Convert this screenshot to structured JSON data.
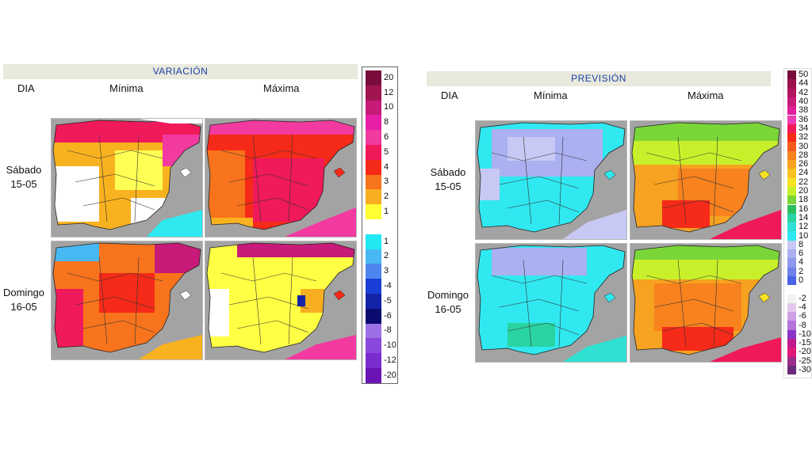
{
  "variacion": {
    "title": "VARIACIÓN",
    "col_day": "DIA",
    "col_min": "Mínima",
    "col_max": "Máxima",
    "rows": [
      {
        "day": "Sábado",
        "date": "15-05"
      },
      {
        "day": "Domingo",
        "date": "16-05"
      }
    ],
    "legend": [
      {
        "value": "20",
        "color": "#7a0c3c"
      },
      {
        "value": "12",
        "color": "#a0144f"
      },
      {
        "value": "10",
        "color": "#c81a78"
      },
      {
        "value": "8",
        "color": "#e61fa6"
      },
      {
        "value": "6",
        "color": "#f23aa0"
      },
      {
        "value": "5",
        "color": "#f0195a"
      },
      {
        "value": "4",
        "color": "#f52a18"
      },
      {
        "value": "3",
        "color": "#f7731c"
      },
      {
        "value": "2",
        "color": "#f7ae20"
      },
      {
        "value": "1",
        "color": "#ffff33"
      },
      {
        "value": "",
        "color": "#ffffff"
      },
      {
        "value": "1",
        "color": "#22e8f2"
      },
      {
        "value": "2",
        "color": "#48b8f2"
      },
      {
        "value": "3",
        "color": "#4d86ee"
      },
      {
        "value": "-4",
        "color": "#1b3fd6"
      },
      {
        "value": "-5",
        "color": "#1424a8"
      },
      {
        "value": "-6",
        "color": "#0c0c70"
      },
      {
        "value": "-8",
        "color": "#9b70e6"
      },
      {
        "value": "-10",
        "color": "#8b48dc"
      },
      {
        "value": "-12",
        "color": "#7a2ccf"
      },
      {
        "value": "-20",
        "color": "#6a14b6"
      }
    ]
  },
  "prevision": {
    "title": "PREVISIÓN",
    "col_day": "DIA",
    "col_min": "Mínima",
    "col_max": "Máxima",
    "rows": [
      {
        "day": "Sábado",
        "date": "15-05"
      },
      {
        "day": "Domingo",
        "date": "16-05"
      }
    ],
    "legend": [
      {
        "value": "50",
        "color": "#7a0c3c"
      },
      {
        "value": "44",
        "color": "#9a104c"
      },
      {
        "value": "42",
        "color": "#b3145e"
      },
      {
        "value": "40",
        "color": "#c81a78"
      },
      {
        "value": "38",
        "color": "#e01e9a"
      },
      {
        "value": "36",
        "color": "#f03cb4"
      },
      {
        "value": "34",
        "color": "#f0195a"
      },
      {
        "value": "32",
        "color": "#f52a18"
      },
      {
        "value": "30",
        "color": "#f65a1c"
      },
      {
        "value": "28",
        "color": "#f7821e"
      },
      {
        "value": "26",
        "color": "#f7a220"
      },
      {
        "value": "24",
        "color": "#f7c222"
      },
      {
        "value": "22",
        "color": "#f8e224"
      },
      {
        "value": "20",
        "color": "#c8f02a"
      },
      {
        "value": "18",
        "color": "#7ad638"
      },
      {
        "value": "16",
        "color": "#2cbf5e"
      },
      {
        "value": "14",
        "color": "#2ad4a2"
      },
      {
        "value": "12",
        "color": "#30e0d2"
      },
      {
        "value": "10",
        "color": "#30e8f0"
      },
      {
        "value": "8",
        "color": "#c8c8f4"
      },
      {
        "value": "6",
        "color": "#aab0f0"
      },
      {
        "value": "4",
        "color": "#8c98ee"
      },
      {
        "value": "2",
        "color": "#6e80ea"
      },
      {
        "value": "0",
        "color": "#4a62e6"
      },
      {
        "value": "",
        "color": "#ffffff"
      },
      {
        "value": "-2",
        "color": "#f2f2f2"
      },
      {
        "value": "-4",
        "color": "#e4c8ec"
      },
      {
        "value": "-6",
        "color": "#d0a0e6"
      },
      {
        "value": "-8",
        "color": "#b474da"
      },
      {
        "value": "-10",
        "color": "#8a34c8"
      },
      {
        "value": "-15",
        "color": "#c01a8e"
      },
      {
        "value": "-20",
        "color": "#e0187a"
      },
      {
        "value": "-25",
        "color": "#9a2c8a"
      },
      {
        "value": "-30",
        "color": "#6a2c7a"
      }
    ]
  },
  "colors": {
    "sea": "#a3a3a3",
    "header_bg": "#e9e9dd",
    "header_text": "#1c3fa6"
  }
}
